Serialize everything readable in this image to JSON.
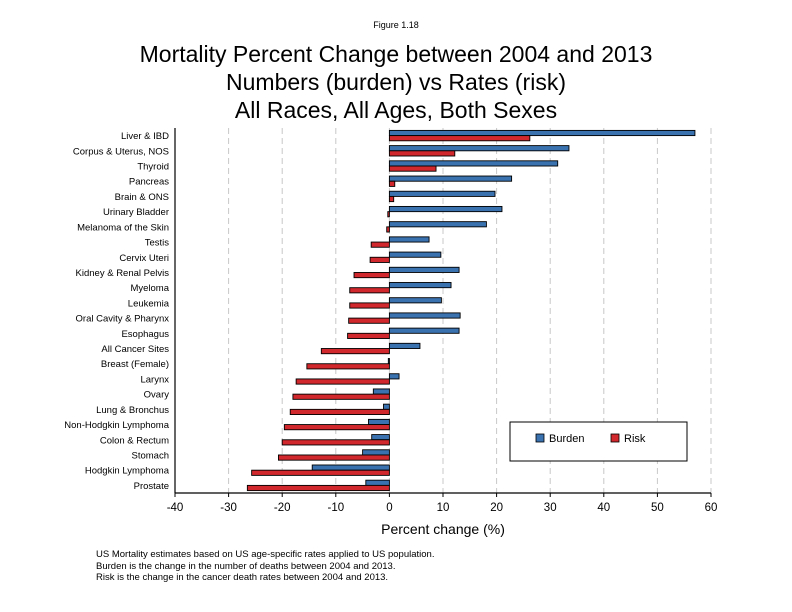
{
  "figure_label": "Figure 1.18",
  "chart_data": {
    "type": "bar",
    "orientation": "horizontal",
    "title": [
      "Mortality Percent Change between 2004 and 2013",
      "Numbers (burden) vs Rates (risk)",
      "All Races, All Ages, Both Sexes"
    ],
    "xlabel": "Percent change (%)",
    "ylabel": "",
    "xlim": [
      -40,
      60
    ],
    "xticks": [
      -40,
      -30,
      -20,
      -10,
      0,
      10,
      20,
      30,
      40,
      50,
      60
    ],
    "grid": "vertical-dashed",
    "legend_position": "lower-right",
    "categories": [
      "Liver & IBD",
      "Corpus & Uterus, NOS",
      "Thyroid",
      "Pancreas",
      "Brain & ONS",
      "Urinary Bladder",
      "Melanoma of the Skin",
      "Testis",
      "Cervix Uteri",
      "Kidney & Renal Pelvis",
      "Myeloma",
      "Leukemia",
      "Oral Cavity & Pharynx",
      "Esophagus",
      "All Cancer Sites",
      "Breast (Female)",
      "Larynx",
      "Ovary",
      "Lung & Bronchus",
      "Non-Hodgkin Lymphoma",
      "Colon & Rectum",
      "Stomach",
      "Hodgkin Lymphoma",
      "Prostate"
    ],
    "series": [
      {
        "name": "Burden",
        "color": "#3a72b0",
        "values": [
          57.0,
          33.5,
          31.4,
          22.8,
          19.7,
          21.0,
          18.1,
          7.4,
          9.6,
          13.0,
          11.5,
          9.7,
          13.2,
          13.0,
          5.7,
          -0.2,
          1.8,
          -3.0,
          -1.1,
          -3.9,
          -3.3,
          -5.0,
          -14.4,
          -4.4
        ]
      },
      {
        "name": "Risk",
        "color": "#d0282c",
        "values": [
          26.2,
          12.2,
          8.7,
          1.0,
          0.8,
          -0.3,
          -0.5,
          -3.4,
          -3.6,
          -6.6,
          -7.4,
          -7.4,
          -7.6,
          -7.8,
          -12.7,
          -15.4,
          -17.4,
          -18.0,
          -18.5,
          -19.6,
          -20.0,
          -20.7,
          -25.7,
          -26.5
        ]
      }
    ]
  },
  "notes": [
    "US Mortality estimates based on US age-specific rates applied to US population.",
    "Burden is the change in the number of deaths between 2004 and 2013.",
    "Risk is the change in the cancer death rates between 2004 and 2013."
  ]
}
